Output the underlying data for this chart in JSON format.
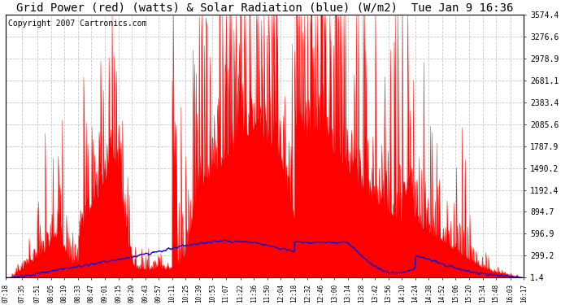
{
  "title": "Grid Power (red) (watts) & Solar Radiation (blue) (W/m2)  Tue Jan 9 16:36",
  "copyright_text": "Copyright 2007 Cartronics.com",
  "bg_color": "#ffffff",
  "plot_bg_color": "#ffffff",
  "grid_color": "#c8c8c8",
  "red_fill_color": "#ff0000",
  "blue_line_color": "#0000dd",
  "ytick_labels": [
    "1.4",
    "299.2",
    "596.9",
    "894.7",
    "1192.4",
    "1490.2",
    "1787.9",
    "2085.6",
    "2383.4",
    "2681.1",
    "2978.9",
    "3276.6",
    "3574.4"
  ],
  "ytick_values": [
    1.4,
    299.2,
    596.9,
    894.7,
    1192.4,
    1490.2,
    1787.9,
    2085.6,
    2383.4,
    2681.1,
    2978.9,
    3276.6,
    3574.4
  ],
  "xtick_labels": [
    "07:18",
    "07:35",
    "07:51",
    "08:05",
    "08:19",
    "08:33",
    "08:47",
    "09:01",
    "09:15",
    "09:29",
    "09:43",
    "09:57",
    "10:11",
    "10:25",
    "10:39",
    "10:53",
    "11:07",
    "11:22",
    "11:36",
    "11:50",
    "12:04",
    "12:18",
    "12:32",
    "12:46",
    "13:00",
    "13:14",
    "13:28",
    "13:42",
    "13:56",
    "14:10",
    "14:24",
    "14:38",
    "14:52",
    "15:06",
    "15:20",
    "15:34",
    "15:48",
    "16:03",
    "16:17"
  ],
  "ymin": 0,
  "ymax": 3574.4,
  "title_fontsize": 10,
  "copyright_fontsize": 7
}
